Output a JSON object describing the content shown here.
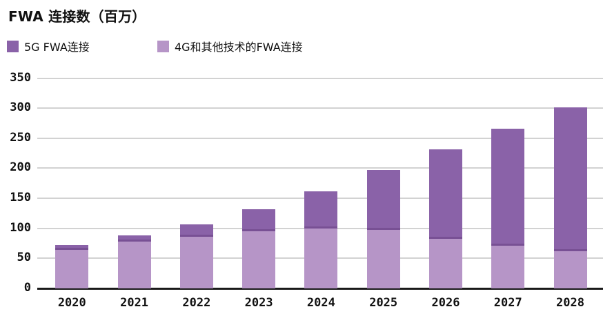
{
  "page": {
    "background": "#ffffff"
  },
  "chart_data": {
    "type": "bar",
    "stacked": true,
    "title": "FWA 连接数（百万）",
    "categories": [
      "2020",
      "2021",
      "2022",
      "2023",
      "2024",
      "2025",
      "2026",
      "2027",
      "2028"
    ],
    "series": [
      {
        "name": "5G FWA连接",
        "color": "#8a62a8",
        "stack_order": "top",
        "values": [
          8,
          10,
          21,
          37,
          61,
          100,
          148,
          195,
          239
        ]
      },
      {
        "name": "4G和其他技术的FWA连接",
        "color": "#b695c7",
        "stack_order": "bottom",
        "values": [
          64,
          78,
          86,
          95,
          100,
          97,
          83,
          71,
          62
        ]
      }
    ],
    "totals": [
      72,
      88,
      107,
      132,
      161,
      197,
      231,
      266,
      301
    ],
    "ylim": [
      0,
      350
    ],
    "yticks": [
      0,
      50,
      100,
      150,
      200,
      250,
      300,
      350
    ],
    "xlabel": "",
    "ylabel": "",
    "grid": true,
    "gridline_color": "#d2d2d2",
    "axis_line_color": "#1a1a1a",
    "legend_position": "top-left"
  }
}
